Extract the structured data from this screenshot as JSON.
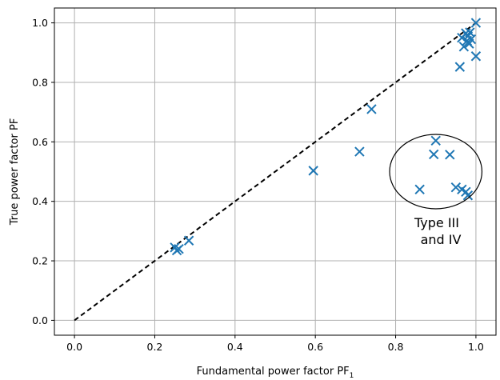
{
  "chart_data": {
    "type": "scatter",
    "xlabel_main": "Fundamental power factor PF",
    "xlabel_sub": "1",
    "ylabel": "True power factor PF",
    "xlim": [
      -0.05,
      1.05
    ],
    "ylim": [
      -0.05,
      1.05
    ],
    "xticks": [
      "0.0",
      "0.2",
      "0.4",
      "0.6",
      "0.8",
      "1.0"
    ],
    "yticks": [
      "0.0",
      "0.2",
      "0.4",
      "0.6",
      "0.8",
      "1.0"
    ],
    "grid": true,
    "marker_color": "#1f77b4",
    "reference_line": {
      "style": "dashed",
      "color": "#000000",
      "from": [
        0,
        0
      ],
      "to": [
        1,
        1
      ]
    },
    "points": [
      {
        "x": 0.25,
        "y": 0.245
      },
      {
        "x": 0.255,
        "y": 0.235
      },
      {
        "x": 0.26,
        "y": 0.24
      },
      {
        "x": 0.285,
        "y": 0.268
      },
      {
        "x": 0.595,
        "y": 0.503
      },
      {
        "x": 0.71,
        "y": 0.567
      },
      {
        "x": 0.74,
        "y": 0.71
      },
      {
        "x": 0.86,
        "y": 0.44
      },
      {
        "x": 0.895,
        "y": 0.558
      },
      {
        "x": 0.9,
        "y": 0.604
      },
      {
        "x": 0.935,
        "y": 0.557
      },
      {
        "x": 0.95,
        "y": 0.447
      },
      {
        "x": 0.965,
        "y": 0.44
      },
      {
        "x": 0.975,
        "y": 0.432
      },
      {
        "x": 0.98,
        "y": 0.42
      },
      {
        "x": 0.96,
        "y": 0.852
      },
      {
        "x": 0.965,
        "y": 0.95
      },
      {
        "x": 0.97,
        "y": 0.92
      },
      {
        "x": 0.975,
        "y": 0.965
      },
      {
        "x": 0.978,
        "y": 0.94
      },
      {
        "x": 0.98,
        "y": 0.955
      },
      {
        "x": 0.983,
        "y": 0.93
      },
      {
        "x": 0.985,
        "y": 0.968
      },
      {
        "x": 0.988,
        "y": 0.945
      },
      {
        "x": 1.0,
        "y": 1.0
      },
      {
        "x": 1.0,
        "y": 0.888
      }
    ],
    "annotation": {
      "lines": [
        "Type III",
        "and IV"
      ],
      "ellipse": {
        "cx": 0.9,
        "cy": 0.5,
        "rx": 0.115,
        "ry": 0.125
      }
    }
  }
}
